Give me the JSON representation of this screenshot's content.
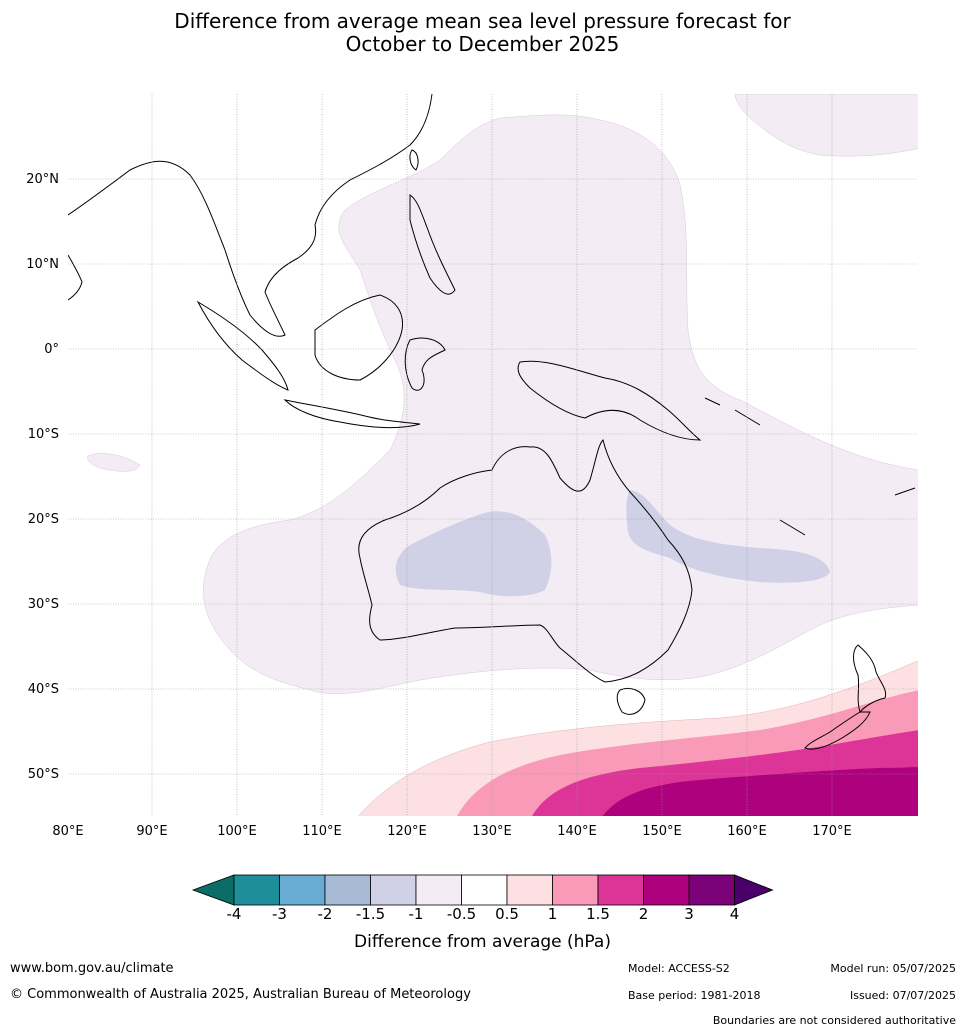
{
  "title_line1": "Difference from average mean sea level pressure forecast for",
  "title_line2": "October to December 2025",
  "map": {
    "lon_labels": [
      "80°E",
      "90°E",
      "100°E",
      "110°E",
      "120°E",
      "130°E",
      "140°E",
      "150°E",
      "160°E",
      "170°E"
    ],
    "lat_labels": [
      "20°N",
      "10°N",
      "0°",
      "10°S",
      "20°S",
      "30°S",
      "40°S",
      "50°S"
    ]
  },
  "colorbar": {
    "ticks": [
      "-4",
      "-3",
      "-2",
      "-1.5",
      "-1",
      "-0.5",
      "0.5",
      "1",
      "1.5",
      "2",
      "3",
      "4"
    ],
    "colors": [
      "#0b6e66",
      "#1e8f9a",
      "#68abd3",
      "#a7bad6",
      "#d0d0e6",
      "#f3ecf4",
      "#ffffff",
      "#fde0e1",
      "#f99ab9",
      "#dd3497",
      "#ae017e",
      "#7a0177",
      "#49006a"
    ],
    "label": "Difference from average (hPa)"
  },
  "footer": {
    "url": "www.bom.gov.au/climate",
    "copyright": "© Commonwealth of Australia 2025, Australian Bureau of Meteorology",
    "model": "Model: ACCESS-S2",
    "base_period": "Base period: 1981-2018",
    "model_run": "Model run: 05/07/2025",
    "issued": "Issued: 07/07/2025",
    "disclaimer": "Boundaries are not considered authoritative"
  }
}
